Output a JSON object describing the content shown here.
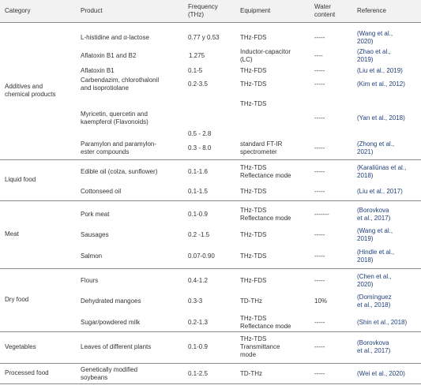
{
  "header": {
    "category": "Category",
    "product": "Product",
    "frequency": "Frequency\n(THz)",
    "equipment": "Equipment",
    "water": "Water\ncontent",
    "reference": "Reference"
  },
  "groups": [
    {
      "category": "Additives and\nchemical products",
      "rows": [
        {
          "product": "L-histidine and α-lactose",
          "frequency": "0.77 y 0.53",
          "equipment": "THz-FDS",
          "water": "-----",
          "reference": "(Wang et al.,\n2020)"
        },
        {
          "product": "Aflatoxin B1 and B2",
          "frequency": "1.275",
          "equipment": "Inductor-capacitor\n(LC)",
          "water": "----",
          "reference": "(Zhao et al.,\n2019)"
        },
        {
          "product": "Aflatoxin B1",
          "frequency": "0.1-5",
          "equipment": "THz-FDS",
          "water": "-----",
          "reference": "(Liu et al., 2019)"
        },
        {
          "product": "Carbendazim, chlorothalonil\nand isoprotiolane",
          "frequency": "0.2-3.5",
          "equipment": "THz-TDS",
          "water": "-----",
          "reference": "(Kim et al., 2012)"
        },
        {
          "product": "Myricetin, quercetin and\nkaempferol (Flavonoids)",
          "frequency": "0.5 - 2.8",
          "equipment": "THz-TDS",
          "water": "-----",
          "reference": "(Yan et al., 2018)"
        },
        {
          "product": "Paramylon and paramylon-\nester compounds",
          "frequency": "0.3 - 8.0",
          "equipment": "standard FT-IR\nspectrometer",
          "water": "-----",
          "reference": "(Zhong et al.,\n2021)"
        }
      ]
    },
    {
      "category": "Liquid food",
      "rows": [
        {
          "product": "Edible oil (colza, sunflower)",
          "frequency": "0.1-1.6",
          "equipment": "THz-TDS\nReflectance mode",
          "water": "-----",
          "reference": "(Karaliūnas et al.,\n2018)"
        },
        {
          "product": "Cottonseed oil",
          "frequency": "0.1-1.5",
          "equipment": "THz-TDS",
          "water": "-----",
          "reference": "(Liu et al., 2017)"
        }
      ]
    },
    {
      "category": "Meat",
      "rows": [
        {
          "product": "Pork meat",
          "frequency": "0.1-0.9",
          "equipment": "THz-TDS\nReflectance mode",
          "water": "-------",
          "reference": "(Borovkova\net al., 2017)"
        },
        {
          "product": "Sausages",
          "frequency": "0.2 -1.5",
          "equipment": "THz-TDS",
          "water": "-----",
          "reference": "(Wang et al.,\n2019)"
        },
        {
          "product": "Salmon",
          "frequency": "0.07-0.90",
          "equipment": "THz-TDS",
          "water": "-----",
          "reference": "(Hindle et al.,\n2018)"
        }
      ]
    },
    {
      "category": "Dry food",
      "rows": [
        {
          "product": "Flours",
          "frequency": "0.4-1.2",
          "equipment": "THz-FDS",
          "water": "-----",
          "reference": "(Chen et al.,\n2020)"
        },
        {
          "product": "Dehydrated mangoes",
          "frequency": "0.3-3",
          "equipment": "TD-THz",
          "water": "10%",
          "reference": "(Domínguez\net al., 2018)"
        },
        {
          "product": "Sugar/powdered milk",
          "frequency": "0.2-1.3",
          "equipment": "THz-TDS\nReflectance mode",
          "water": "-----",
          "reference": "(Shin et al., 2018)"
        }
      ]
    },
    {
      "category": "Vegetables",
      "rows": [
        {
          "product": "Leaves of different plants",
          "frequency": "0.1-0.9",
          "equipment": "THz-TDS\nTransmittance\nmode",
          "water": "-----",
          "reference": "(Borovkova\net al., 2017)"
        }
      ]
    },
    {
      "category": "Processed food",
      "rows": [
        {
          "product": "Genetically modified\nsoybeans",
          "frequency": "0.1-2.5",
          "equipment": "TD-THz",
          "water": "-----",
          "reference": "(Wei et al., 2020)"
        }
      ]
    }
  ]
}
